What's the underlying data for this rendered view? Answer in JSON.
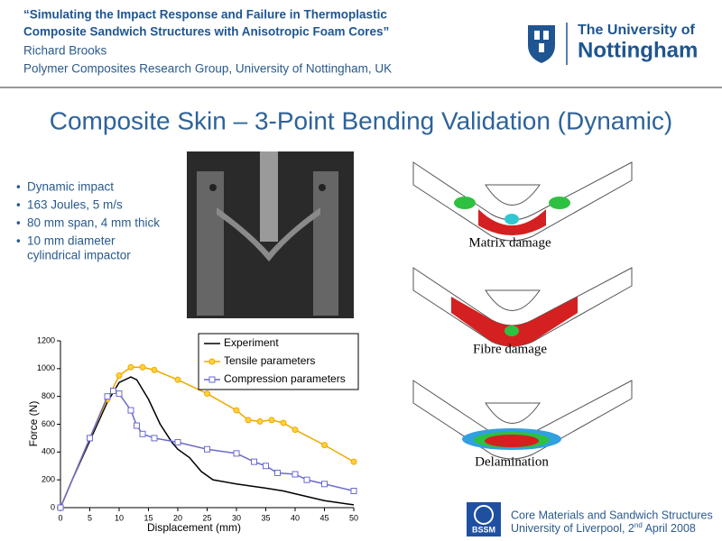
{
  "header": {
    "title_line1": "“Simulating the Impact Response and Failure in Thermoplastic",
    "title_line2": "Composite Sandwich Structures with Anisotropic Foam Cores”",
    "author": "Richard Brooks",
    "affiliation": "Polymer Composites Research Group, University of Nottingham, UK",
    "logo_line1": "The University of",
    "logo_line2": "Nottingham"
  },
  "slide": {
    "title": "Composite Skin – 3-Point Bending Validation (Dynamic)",
    "bullets": [
      "Dynamic impact",
      "163 Joules, 5 m/s",
      "80 mm span, 4 mm thick",
      "10 mm diameter",
      "cylindrical impactor"
    ],
    "captions": [
      "Matrix damage",
      "Fibre damage",
      "Delamination"
    ]
  },
  "footer": {
    "line1": "Core Materials and Sandwich Structures",
    "line2_a": "University of Liverpool, 2",
    "line2_sup": "nd",
    "line2_b": " April 2008",
    "logo": "BSSM"
  },
  "chart_data": {
    "type": "line",
    "x_label": "Displacement (mm)",
    "y_label": "Force (N)",
    "xlim": [
      0,
      50
    ],
    "ylim": [
      0,
      1200
    ],
    "xticks": [
      0,
      5,
      10,
      15,
      20,
      25,
      30,
      35,
      40,
      45,
      50
    ],
    "yticks": [
      0,
      200,
      400,
      600,
      800,
      1000,
      1200
    ],
    "series": [
      {
        "name": "Experiment",
        "color": "#000000",
        "marker": "none",
        "x": [
          0,
          2,
          5,
          8,
          10,
          12,
          13,
          15,
          17,
          19,
          20,
          22,
          24,
          26,
          30,
          35,
          38,
          40,
          45,
          50
        ],
        "values": [
          0,
          200,
          480,
          760,
          900,
          940,
          920,
          780,
          600,
          470,
          420,
          360,
          260,
          200,
          170,
          140,
          120,
          100,
          50,
          20
        ]
      },
      {
        "name": "Tensile parameters",
        "color": "#f0a800",
        "marker": "circle",
        "x": [
          0,
          5,
          8,
          10,
          12,
          14,
          16,
          20,
          25,
          30,
          32,
          34,
          36,
          38,
          40,
          45,
          50
        ],
        "values": [
          0,
          500,
          780,
          950,
          1010,
          1010,
          990,
          920,
          820,
          700,
          630,
          620,
          630,
          610,
          560,
          450,
          330
        ]
      },
      {
        "name": "Compression parameters",
        "color": "#6a6ad0",
        "marker": "square",
        "x": [
          0,
          5,
          8,
          9,
          10,
          12,
          13,
          14,
          16,
          20,
          25,
          30,
          33,
          35,
          37,
          40,
          42,
          45,
          50
        ],
        "values": [
          0,
          500,
          800,
          840,
          820,
          700,
          590,
          530,
          500,
          470,
          420,
          390,
          330,
          300,
          250,
          240,
          200,
          170,
          120
        ]
      }
    ]
  }
}
